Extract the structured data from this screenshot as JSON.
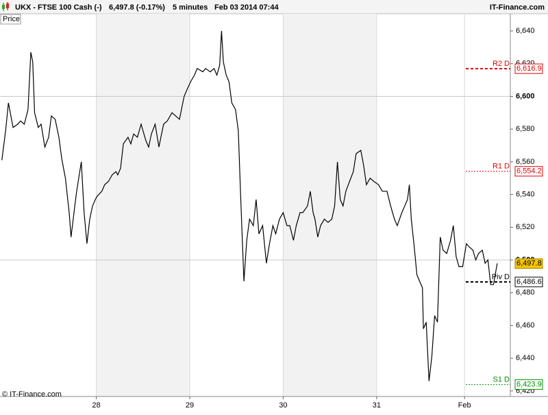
{
  "chart_data": {
    "type": "line",
    "title": "UKX - FTSE 100 Cash (-)",
    "last_change": "6,497.8 (-0.17%)",
    "interval": "5 minutes",
    "timestamp": "Feb 03 2014 07:44",
    "brand": "IT-Finance.com",
    "copyright": "© IT-Finance.com",
    "y_axis_label": "Price",
    "xlim": [
      -103,
      443
    ],
    "xticks": [
      {
        "value": 0,
        "label": "28"
      },
      {
        "value": 100,
        "label": "29"
      },
      {
        "value": 200,
        "label": "30"
      },
      {
        "value": 300,
        "label": "31"
      },
      {
        "value": 394,
        "label": "Feb"
      }
    ],
    "ylim": [
      6416.6,
      6650.5
    ],
    "yticks": [
      {
        "value": 6420,
        "label": "6,420"
      },
      {
        "value": 6440,
        "label": "6,440"
      },
      {
        "value": 6460,
        "label": "6,460"
      },
      {
        "value": 6480,
        "label": "6,480"
      },
      {
        "value": 6500,
        "label": "6,500"
      },
      {
        "value": 6520,
        "label": "6,520"
      },
      {
        "value": 6540,
        "label": "6,540"
      },
      {
        "value": 6560,
        "label": "6,560"
      },
      {
        "value": 6580,
        "label": "6,580"
      },
      {
        "value": 6600,
        "label": "6,600"
      },
      {
        "value": 6620,
        "label": "6,620"
      },
      {
        "value": 6640,
        "label": "6,640"
      }
    ],
    "x": [
      -101,
      -97,
      -94,
      -89,
      -84,
      -81,
      -77,
      -73,
      -70,
      -68,
      -66,
      -62,
      -59,
      -55,
      -51,
      -48,
      -44,
      -40,
      -37,
      -33,
      -29,
      -27,
      -23,
      -21,
      -16,
      -13,
      -10,
      -7,
      -4,
      -1,
      1,
      6,
      9,
      13,
      17,
      21,
      23,
      26,
      29,
      34,
      37,
      40,
      44,
      48,
      53,
      56,
      59,
      63,
      67,
      72,
      76,
      81,
      85,
      89,
      94,
      97,
      101,
      105,
      108,
      114,
      117,
      122,
      126,
      129,
      132,
      134,
      136,
      139,
      142,
      145,
      149,
      152,
      154,
      156,
      158,
      161,
      164,
      168,
      171,
      174,
      178,
      182,
      185,
      189,
      192,
      196,
      200,
      204,
      207,
      211,
      214,
      218,
      221,
      226,
      229,
      232,
      234,
      237,
      240,
      244,
      248,
      252,
      255,
      258,
      261,
      264,
      267,
      271,
      275,
      278,
      283,
      286,
      289,
      293,
      297,
      302,
      306,
      311,
      315,
      319,
      322,
      327,
      330,
      333,
      335,
      337,
      340,
      343,
      346,
      349,
      350,
      353,
      356,
      359,
      362,
      365,
      368,
      371,
      375,
      379,
      382,
      385,
      388,
      392,
      396,
      399,
      403,
      406,
      409,
      413,
      416,
      419,
      422,
      425,
      429
    ],
    "series": [
      {
        "name": "Price",
        "color": "#000000",
        "values": [
          6561,
          6579,
          6596,
          6581,
          6583,
          6585,
          6583,
          6592,
          6627,
          6621,
          6590,
          6581,
          6583,
          6569,
          6575,
          6588,
          6586,
          6575,
          6562,
          6550,
          6529,
          6514,
          6533,
          6542,
          6560,
          6529,
          6510,
          6525,
          6533,
          6537,
          6539,
          6542,
          6546,
          6548,
          6552,
          6554,
          6552,
          6556,
          6571,
          6575,
          6571,
          6577,
          6575,
          6583,
          6573,
          6569,
          6577,
          6583,
          6569,
          6583,
          6585,
          6590,
          6588,
          6586,
          6600,
          6604,
          6609,
          6613,
          6617,
          6615,
          6617,
          6615,
          6617,
          6613,
          6619,
          6640,
          6621,
          6613,
          6609,
          6596,
          6592,
          6579,
          6546,
          6516,
          6487,
          6512,
          6525,
          6521,
          6537,
          6516,
          6521,
          6498,
          6509,
          6521,
          6516,
          6525,
          6529,
          6521,
          6521,
          6512,
          6521,
          6529,
          6529,
          6533,
          6542,
          6529,
          6525,
          6514,
          6521,
          6525,
          6523,
          6525,
          6533,
          6560,
          6537,
          6533,
          6542,
          6548,
          6554,
          6565,
          6567,
          6558,
          6546,
          6550,
          6548,
          6546,
          6542,
          6542,
          6533,
          6525,
          6521,
          6529,
          6533,
          6537,
          6546,
          6525,
          6509,
          6491,
          6487,
          6483,
          6458,
          6462,
          6426,
          6441,
          6466,
          6462,
          6514,
          6506,
          6504,
          6512,
          6521,
          6502,
          6496,
          6496,
          6510,
          6508,
          6506,
          6500,
          6504,
          6506,
          6498,
          6500,
          6485,
          6485,
          6498
        ]
      }
    ],
    "last_price": {
      "value": 6497.8,
      "label": "6,497.8",
      "color": "#f5c400"
    },
    "levels": [
      {
        "name": "R2 D",
        "value": 6616.9,
        "value_label": "6,616.9",
        "color": "#e00000",
        "dash": "4,3"
      },
      {
        "name": "R1 D",
        "value": 6554.2,
        "value_label": "6,554.2",
        "color": "#e00000",
        "dash": "2,2"
      },
      {
        "name": "Piv D",
        "value": 6486.6,
        "value_label": "6,486.6",
        "color": "#000000",
        "dash": "4,3"
      },
      {
        "name": "S1 D",
        "value": 6423.9,
        "value_label": "6,423.9",
        "color": "#009000",
        "dash": "2,2"
      }
    ],
    "grid": true
  }
}
